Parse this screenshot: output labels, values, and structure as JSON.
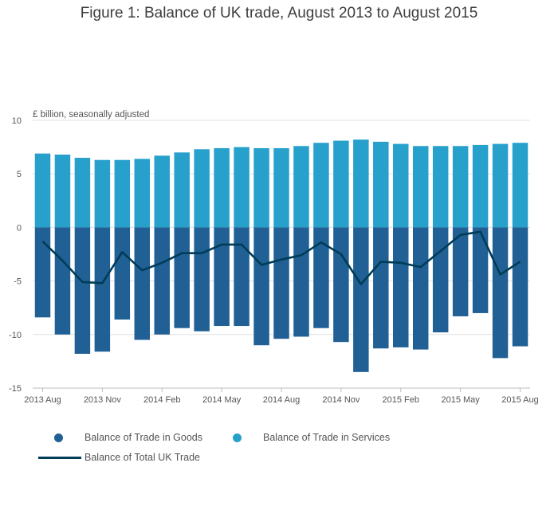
{
  "colors": {
    "goods": "#206095",
    "services": "#27a0cc",
    "total": "#003c57",
    "grid": "#e0e0e0",
    "axis": "#bdbdbd"
  },
  "chart_data": {
    "type": "bar",
    "title": "Figure 1: Balance of UK trade, August 2013 to August 2015",
    "ylabel": "£ billion, seasonally adjusted",
    "ylim": [
      -15,
      10
    ],
    "yticks": [
      10,
      5,
      0,
      -5,
      -10,
      -15
    ],
    "ytick_labels": [
      "10",
      "5",
      "0",
      "-5",
      "-10",
      "-15"
    ],
    "xtick_labels": [
      "2013 Aug",
      "2013 Nov",
      "2014 Feb",
      "2014 May",
      "2014 Aug",
      "2014 Nov",
      "2015 Feb",
      "2015 May",
      "2015 Aug"
    ],
    "xtick_indices": [
      0,
      3,
      6,
      9,
      12,
      15,
      18,
      21,
      24
    ],
    "categories": [
      "2013 Aug",
      "2013 Sep",
      "2013 Oct",
      "2013 Nov",
      "2013 Dec",
      "2014 Jan",
      "2014 Feb",
      "2014 Mar",
      "2014 Apr",
      "2014 May",
      "2014 Jun",
      "2014 Jul",
      "2014 Aug",
      "2014 Sep",
      "2014 Oct",
      "2014 Nov",
      "2014 Dec",
      "2015 Jan",
      "2015 Feb",
      "2015 Mar",
      "2015 Apr",
      "2015 May",
      "2015 Jun",
      "2015 Jul",
      "2015 Aug"
    ],
    "stacked": true,
    "series": [
      {
        "name": "Balance of Trade in Goods",
        "type": "bar",
        "values": [
          -8.4,
          -10.0,
          -11.8,
          -11.6,
          -8.6,
          -10.5,
          -10.0,
          -9.4,
          -9.7,
          -9.2,
          -9.2,
          -11.0,
          -10.4,
          -10.2,
          -9.4,
          -10.7,
          -13.5,
          -11.3,
          -11.2,
          -11.4,
          -9.8,
          -8.3,
          -8.0,
          -12.2,
          -11.1
        ]
      },
      {
        "name": "Balance of Trade in Services",
        "type": "bar",
        "values": [
          6.9,
          6.8,
          6.5,
          6.3,
          6.3,
          6.4,
          6.7,
          7.0,
          7.3,
          7.4,
          7.5,
          7.4,
          7.4,
          7.6,
          7.9,
          8.1,
          8.2,
          8.0,
          7.8,
          7.6,
          7.6,
          7.6,
          7.7,
          7.8,
          7.9
        ]
      },
      {
        "name": "Balance of Total UK Trade",
        "type": "line",
        "values": [
          -1.3,
          -3.1,
          -5.1,
          -5.2,
          -2.3,
          -4.0,
          -3.3,
          -2.4,
          -2.4,
          -1.6,
          -1.6,
          -3.5,
          -3.0,
          -2.6,
          -1.4,
          -2.5,
          -5.3,
          -3.2,
          -3.3,
          -3.7,
          -2.2,
          -0.7,
          -0.4,
          -4.4,
          -3.2
        ]
      }
    ],
    "legend": {
      "goods_label": "Balance of Trade in Goods",
      "services_label": "Balance of Trade in Services",
      "total_label": "Balance of Total UK Trade",
      "position": "bottom-left"
    },
    "grid": true
  }
}
